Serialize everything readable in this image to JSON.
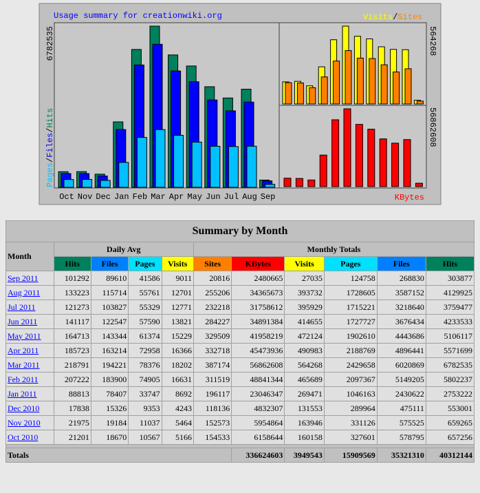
{
  "graph": {
    "title": "Usage summary for creationwiki.org",
    "left_legend": [
      {
        "name": "Pages",
        "color": "#00c0ff"
      },
      {
        "name": "Files",
        "color": "#0000ff"
      },
      {
        "name": "Hits",
        "color": "#00805c"
      }
    ],
    "separator": "/",
    "left_max": 6782535,
    "top_right_max": 564268,
    "bottom_right_max": 56862608,
    "top_right_legend": [
      {
        "name": "Visits",
        "color": "#ffff00"
      },
      {
        "name": "Sites",
        "color": "#ff8000"
      }
    ],
    "bottom_right_legend": {
      "name": "KBytes",
      "color": "#ff0000"
    },
    "months": [
      "Oct",
      "Nov",
      "Dec",
      "Jan",
      "Feb",
      "Mar",
      "Apr",
      "May",
      "Jun",
      "Jul",
      "Aug",
      "Sep"
    ]
  },
  "table": {
    "title": "Summary by Month",
    "row_header": "Month",
    "group_headers": [
      "Daily Avg",
      "Monthly Totals"
    ],
    "columns": [
      {
        "name": "Hits",
        "color": "#00805c"
      },
      {
        "name": "Files",
        "color": "#0080ff"
      },
      {
        "name": "Pages",
        "color": "#00e0ff"
      },
      {
        "name": "Visits",
        "color": "#ffff00"
      },
      {
        "name": "Sites",
        "color": "#ff8000"
      },
      {
        "name": "KBytes",
        "color": "#ff0000"
      },
      {
        "name": "Visits",
        "color": "#ffff00"
      },
      {
        "name": "Pages",
        "color": "#00e0ff"
      },
      {
        "name": "Files",
        "color": "#0080ff"
      },
      {
        "name": "Hits",
        "color": "#00805c"
      }
    ],
    "rows": [
      [
        "Sep 2011",
        101292,
        89610,
        41586,
        9011,
        20816,
        2480665,
        27035,
        124758,
        268830,
        303877
      ],
      [
        "Aug 2011",
        133223,
        115714,
        55761,
        12701,
        255206,
        34365673,
        393732,
        1728605,
        3587152,
        4129925
      ],
      [
        "Jul 2011",
        121273,
        103827,
        55329,
        12771,
        232218,
        31758612,
        395929,
        1715221,
        3218640,
        3759477
      ],
      [
        "Jun 2011",
        141117,
        122547,
        57590,
        13821,
        284227,
        34891384,
        414655,
        1727727,
        3676434,
        4233533
      ],
      [
        "May 2011",
        164713,
        143344,
        61374,
        15229,
        329509,
        41958219,
        472124,
        1902610,
        4443686,
        5106117
      ],
      [
        "Apr 2011",
        185723,
        163214,
        72958,
        16366,
        332718,
        45473936,
        490983,
        2188769,
        4896441,
        5571699
      ],
      [
        "Mar 2011",
        218791,
        194221,
        78376,
        18202,
        387174,
        56862608,
        564268,
        2429658,
        6020869,
        6782535
      ],
      [
        "Feb 2011",
        207222,
        183900,
        74905,
        16631,
        311519,
        48841344,
        465689,
        2097367,
        5149205,
        5802237
      ],
      [
        "Jan 2011",
        88813,
        78407,
        33747,
        8692,
        196117,
        23046347,
        269471,
        1046163,
        2430622,
        2753222
      ],
      [
        "Dec 2010",
        17838,
        15326,
        9353,
        4243,
        118136,
        4832307,
        131553,
        289964,
        475111,
        553001
      ],
      [
        "Nov 2010",
        21975,
        19184,
        11037,
        5464,
        152573,
        5954864,
        163946,
        331126,
        575525,
        659265
      ],
      [
        "Oct 2010",
        21201,
        18670,
        10567,
        5166,
        154533,
        6158644,
        160158,
        327601,
        578795,
        657256
      ]
    ],
    "totals_label": "Totals",
    "totals": [
      336624603,
      3949543,
      15909569,
      35321310,
      40312144
    ]
  }
}
